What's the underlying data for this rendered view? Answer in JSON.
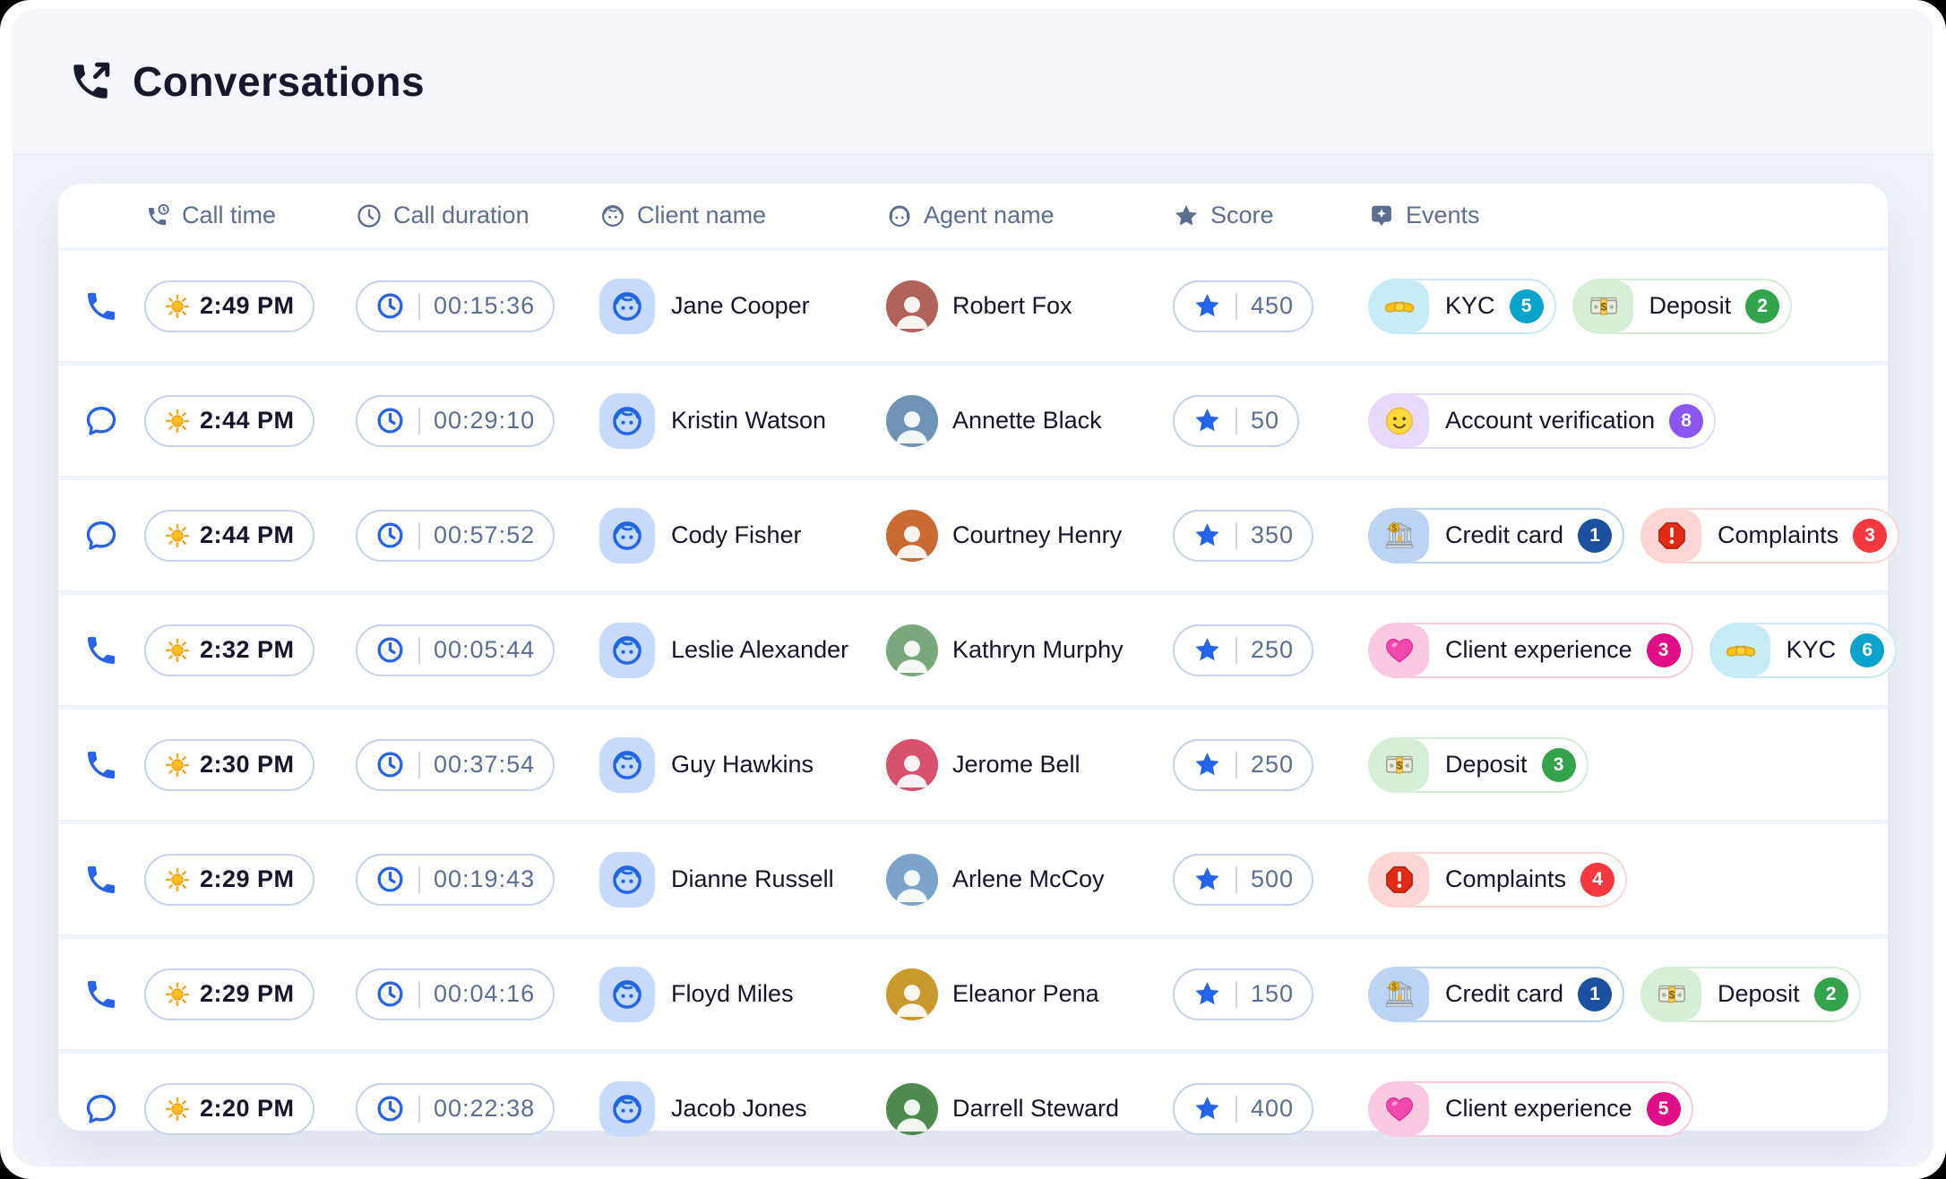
{
  "page": {
    "title": "Conversations",
    "title_icon": "phone-outgoing-icon"
  },
  "colors": {
    "accent_blue": "#2563eb",
    "header_text": "#5e6d92",
    "events": {
      "kyc": {
        "chip": "#c7ebf5",
        "count": "#0aa3cb"
      },
      "deposit": {
        "chip": "#d6edd6",
        "count": "#33a44b"
      },
      "account": {
        "chip": "#e6d9fb",
        "count": "#8a55f0"
      },
      "credit": {
        "chip": "#bcd3f3",
        "count": "#1b519e"
      },
      "complaints": {
        "chip": "#fcd5d4",
        "count": "#f6383f"
      },
      "experience": {
        "chip": "#f8c9e0",
        "count": "#df0d86"
      }
    }
  },
  "table": {
    "columns": [
      {
        "label": "Call time",
        "icon": "phone-clock-icon"
      },
      {
        "label": "Call duration",
        "icon": "clock-icon"
      },
      {
        "label": "Client name",
        "icon": "face-icon"
      },
      {
        "label": "Agent name",
        "icon": "agent-headset-icon"
      },
      {
        "label": "Score",
        "icon": "star-icon"
      },
      {
        "label": "Events",
        "icon": "badge-icon"
      }
    ],
    "rows": [
      {
        "channel": "call",
        "channel_icon": "phone-icon",
        "time": "2:49 PM",
        "duration": "00:15:36",
        "client": "Jane Cooper",
        "agent": "Robert Fox",
        "agent_color": "#b2625c",
        "score": "450",
        "events": [
          {
            "type": "kyc",
            "icon": "handshake-icon",
            "label": "KYC",
            "count": "5"
          },
          {
            "type": "deposit",
            "icon": "money-icon",
            "label": "Deposit",
            "count": "2"
          }
        ]
      },
      {
        "channel": "chat",
        "channel_icon": "chat-icon",
        "time": "2:44 PM",
        "duration": "00:29:10",
        "client": "Kristin Watson",
        "agent": "Annette Black",
        "agent_color": "#6f93b5",
        "score": "50",
        "events": [
          {
            "type": "account",
            "icon": "smiley-icon",
            "label": "Account verification",
            "count": "8"
          }
        ]
      },
      {
        "channel": "chat",
        "channel_icon": "chat-icon",
        "time": "2:44 PM",
        "duration": "00:57:52",
        "client": "Cody Fisher",
        "agent": "Courtney Henry",
        "agent_color": "#c96a33",
        "score": "350",
        "events": [
          {
            "type": "credit",
            "icon": "bank-icon",
            "label": "Credit card",
            "count": "1"
          },
          {
            "type": "complaints",
            "icon": "stop-icon",
            "label": "Complaints",
            "count": "3"
          }
        ]
      },
      {
        "channel": "call",
        "channel_icon": "phone-icon",
        "time": "2:32 PM",
        "duration": "00:05:44",
        "client": "Leslie Alexander",
        "agent": "Kathryn Murphy",
        "agent_color": "#7aa77c",
        "score": "250",
        "events": [
          {
            "type": "experience",
            "icon": "heart-icon",
            "label": "Client experience",
            "count": "3"
          },
          {
            "type": "kyc",
            "icon": "handshake-icon",
            "label": "KYC",
            "count": "6"
          }
        ]
      },
      {
        "channel": "call",
        "channel_icon": "phone-icon",
        "time": "2:30 PM",
        "duration": "00:37:54",
        "client": "Guy Hawkins",
        "agent": "Jerome Bell",
        "agent_color": "#d94f6e",
        "score": "250",
        "events": [
          {
            "type": "deposit",
            "icon": "money-icon",
            "label": "Deposit",
            "count": "3"
          }
        ]
      },
      {
        "channel": "call",
        "channel_icon": "phone-icon",
        "time": "2:29 PM",
        "duration": "00:19:43",
        "client": "Dianne Russell",
        "agent": "Arlene McCoy",
        "agent_color": "#7ba3cc",
        "score": "500",
        "events": [
          {
            "type": "complaints",
            "icon": "stop-icon",
            "label": "Complaints",
            "count": "4"
          }
        ]
      },
      {
        "channel": "call",
        "channel_icon": "phone-icon",
        "time": "2:29 PM",
        "duration": "00:04:16",
        "client": "Floyd Miles",
        "agent": "Eleanor Pena",
        "agent_color": "#c9992e",
        "score": "150",
        "events": [
          {
            "type": "credit",
            "icon": "bank-icon",
            "label": "Credit card",
            "count": "1"
          },
          {
            "type": "deposit",
            "icon": "money-icon",
            "label": "Deposit",
            "count": "2"
          }
        ]
      },
      {
        "channel": "chat",
        "channel_icon": "chat-icon",
        "time": "2:20 PM",
        "duration": "00:22:38",
        "client": "Jacob Jones",
        "agent": "Darrell Steward",
        "agent_color": "#4e8a50",
        "score": "400",
        "events": [
          {
            "type": "experience",
            "icon": "heart-icon",
            "label": "Client experience",
            "count": "5"
          }
        ]
      }
    ]
  }
}
